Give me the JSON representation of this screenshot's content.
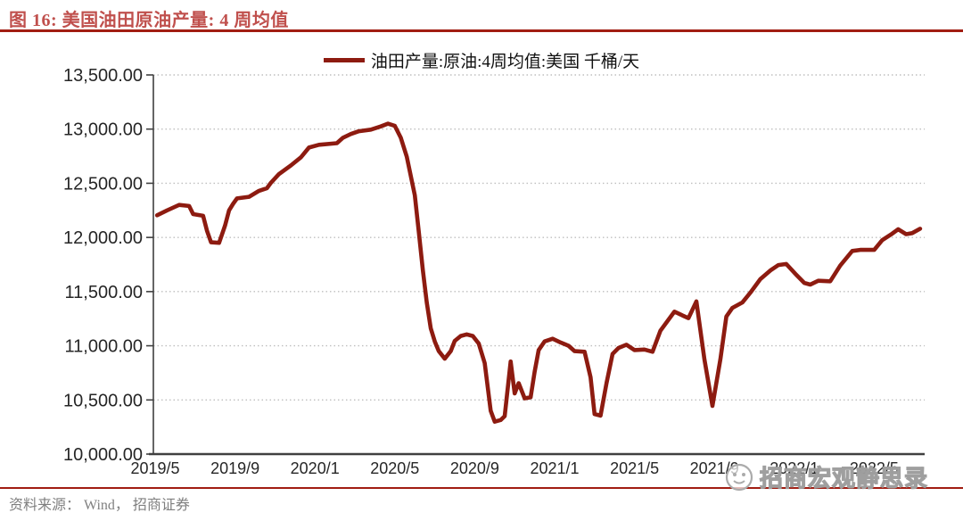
{
  "title": "图 16: 美国油田原油产量: 4 周均值",
  "legend": {
    "label": "油田产量:原油:4周均值:美国 千桶/天"
  },
  "source": "资料来源： Wind， 招商证券",
  "watermark_text": "招商宏观静思录",
  "colors": {
    "title": "#C0504D",
    "rule": "#A11D12",
    "line": "#8D1B10",
    "grid": "#BFBFBF",
    "axis": "#404040",
    "tick_text": "#262626",
    "source_text": "#7F7F7F",
    "watermark_stroke": "#9B9B9B"
  },
  "chart_data": {
    "type": "line",
    "title": "美国油田原油产量: 4 周均值",
    "unit": "千桶/天",
    "grid": "horizontal-dotted",
    "legend_position": "top-center",
    "ylim": [
      10000,
      13500
    ],
    "y_ticks": [
      10000,
      10500,
      11000,
      11500,
      12000,
      12500,
      13000,
      13500
    ],
    "y_tick_labels": [
      "10,000.00",
      "10,500.00",
      "11,000.00",
      "11,500.00",
      "12,000.00",
      "12,500.00",
      "13,000.00",
      "13,500.00"
    ],
    "x_tick_labels": [
      "2019/5",
      "2019/9",
      "2020/1",
      "2020/5",
      "2020/9",
      "2021/1",
      "2021/5",
      "2021/9",
      "2022/1",
      "2022/5"
    ],
    "x_tick_months": [
      0,
      4,
      8,
      12,
      16,
      20,
      24,
      28,
      32,
      36
    ],
    "xlim_months": [
      -0.5,
      40
    ],
    "series": [
      {
        "name": "油田产量:原油:4周均值:美国 千桶/天",
        "color": "#8D1B10",
        "x_unit": "months since 2019/5",
        "y_unit": "千桶/天",
        "points": [
          [
            0.1,
            12205
          ],
          [
            0.6,
            12250
          ],
          [
            1.2,
            12300
          ],
          [
            1.7,
            12290
          ],
          [
            1.9,
            12215
          ],
          [
            2.4,
            12200
          ],
          [
            2.6,
            12060
          ],
          [
            2.8,
            11955
          ],
          [
            3.2,
            11950
          ],
          [
            3.5,
            12110
          ],
          [
            3.7,
            12250
          ],
          [
            3.9,
            12310
          ],
          [
            4.1,
            12360
          ],
          [
            4.7,
            12375
          ],
          [
            5.2,
            12430
          ],
          [
            5.6,
            12455
          ],
          [
            5.8,
            12505
          ],
          [
            6.2,
            12585
          ],
          [
            6.8,
            12665
          ],
          [
            7.3,
            12740
          ],
          [
            7.7,
            12830
          ],
          [
            8.2,
            12855
          ],
          [
            9.1,
            12870
          ],
          [
            9.4,
            12920
          ],
          [
            9.8,
            12955
          ],
          [
            10.2,
            12980
          ],
          [
            10.8,
            12995
          ],
          [
            11.3,
            13025
          ],
          [
            11.65,
            13050
          ],
          [
            12.0,
            13030
          ],
          [
            12.3,
            12920
          ],
          [
            12.6,
            12745
          ],
          [
            13.0,
            12390
          ],
          [
            13.2,
            12050
          ],
          [
            13.4,
            11700
          ],
          [
            13.6,
            11400
          ],
          [
            13.8,
            11160
          ],
          [
            14.0,
            11040
          ],
          [
            14.2,
            10950
          ],
          [
            14.5,
            10880
          ],
          [
            14.8,
            10950
          ],
          [
            15.0,
            11045
          ],
          [
            15.3,
            11090
          ],
          [
            15.6,
            11105
          ],
          [
            15.9,
            11090
          ],
          [
            16.2,
            11020
          ],
          [
            16.5,
            10840
          ],
          [
            16.8,
            10400
          ],
          [
            17.0,
            10300
          ],
          [
            17.3,
            10315
          ],
          [
            17.5,
            10350
          ],
          [
            17.8,
            10855
          ],
          [
            18.0,
            10560
          ],
          [
            18.2,
            10655
          ],
          [
            18.5,
            10515
          ],
          [
            18.8,
            10525
          ],
          [
            19.0,
            10760
          ],
          [
            19.2,
            10960
          ],
          [
            19.5,
            11040
          ],
          [
            19.9,
            11065
          ],
          [
            20.3,
            11030
          ],
          [
            20.7,
            11000
          ],
          [
            21.0,
            10950
          ],
          [
            21.5,
            10945
          ],
          [
            21.8,
            10710
          ],
          [
            22.0,
            10370
          ],
          [
            22.3,
            10355
          ],
          [
            22.6,
            10655
          ],
          [
            22.9,
            10925
          ],
          [
            23.2,
            10980
          ],
          [
            23.6,
            11010
          ],
          [
            24.0,
            10960
          ],
          [
            24.5,
            10965
          ],
          [
            24.9,
            10945
          ],
          [
            25.3,
            11140
          ],
          [
            25.7,
            11240
          ],
          [
            26.0,
            11315
          ],
          [
            26.4,
            11280
          ],
          [
            26.7,
            11255
          ],
          [
            27.1,
            11410
          ],
          [
            27.5,
            10875
          ],
          [
            27.9,
            10445
          ],
          [
            28.3,
            10875
          ],
          [
            28.6,
            11270
          ],
          [
            28.9,
            11350
          ],
          [
            29.4,
            11400
          ],
          [
            29.8,
            11490
          ],
          [
            30.3,
            11615
          ],
          [
            30.8,
            11695
          ],
          [
            31.2,
            11745
          ],
          [
            31.6,
            11755
          ],
          [
            32.1,
            11655
          ],
          [
            32.5,
            11580
          ],
          [
            32.8,
            11565
          ],
          [
            33.2,
            11600
          ],
          [
            33.8,
            11595
          ],
          [
            34.3,
            11740
          ],
          [
            34.9,
            11875
          ],
          [
            35.3,
            11885
          ],
          [
            36.0,
            11885
          ],
          [
            36.4,
            11975
          ],
          [
            36.9,
            12035
          ],
          [
            37.2,
            12075
          ],
          [
            37.6,
            12030
          ],
          [
            37.9,
            12040
          ],
          [
            38.3,
            12080
          ]
        ]
      }
    ]
  }
}
